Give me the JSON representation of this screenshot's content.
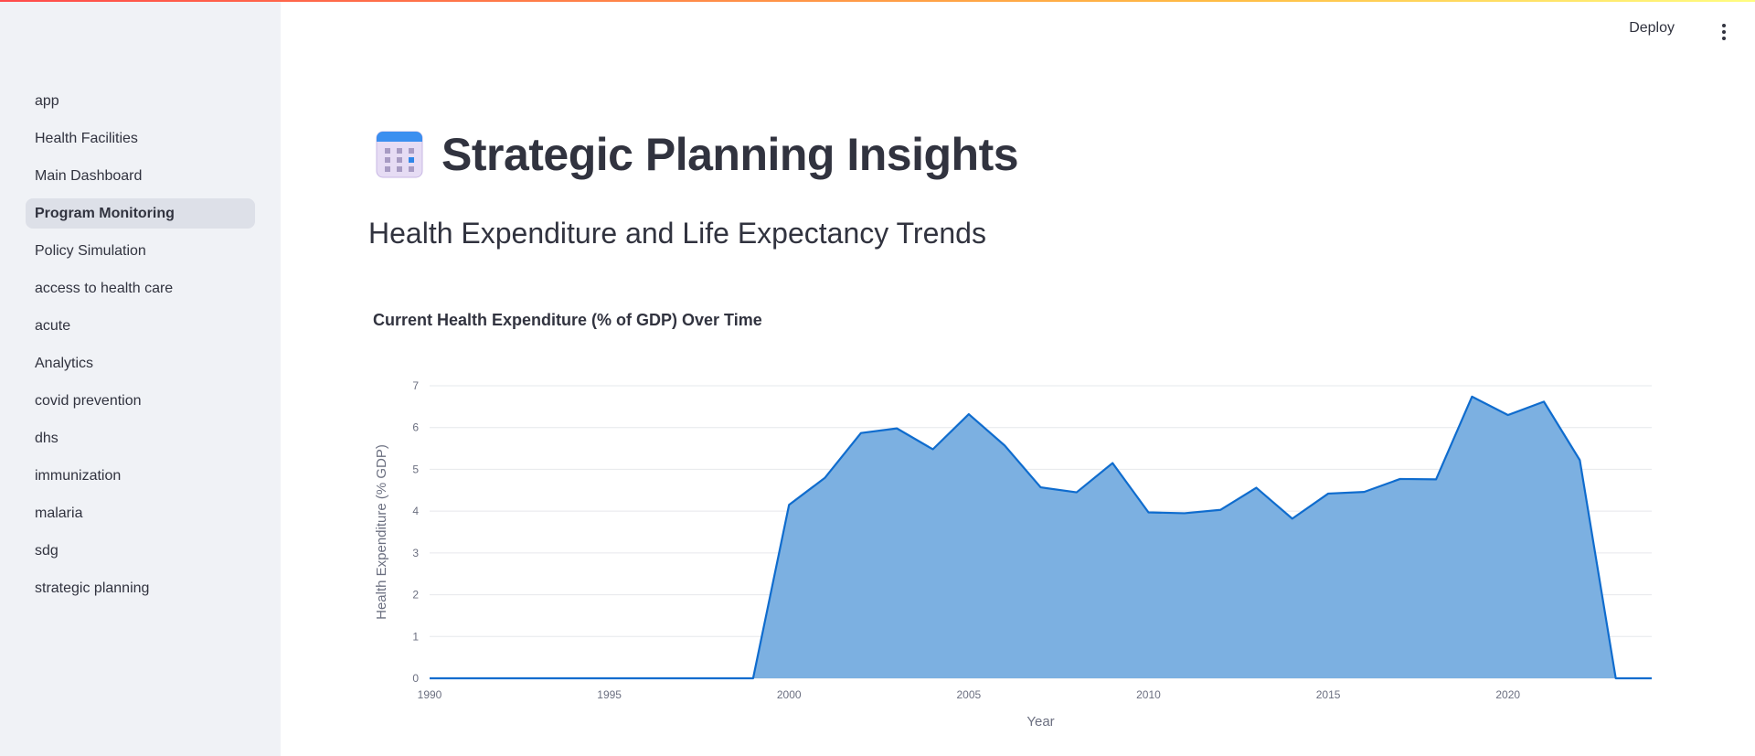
{
  "sidebar": {
    "items": [
      {
        "label": "app"
      },
      {
        "label": "Health Facilities"
      },
      {
        "label": "Main Dashboard"
      },
      {
        "label": "Program Monitoring"
      },
      {
        "label": "Policy Simulation"
      },
      {
        "label": "access to health care"
      },
      {
        "label": "acute"
      },
      {
        "label": "Analytics"
      },
      {
        "label": "covid prevention"
      },
      {
        "label": "dhs"
      },
      {
        "label": "immunization"
      },
      {
        "label": "malaria"
      },
      {
        "label": "sdg"
      },
      {
        "label": "strategic planning"
      }
    ],
    "active_index": 3
  },
  "header": {
    "deploy_label": "Deploy",
    "menu_icon": "kebab-menu-icon"
  },
  "main": {
    "title_icon": "calendar-icon",
    "title": "Strategic Planning Insights",
    "subtitle": "Health Expenditure and Life Expectancy Trends",
    "chart_title": "Current Health Expenditure (% of GDP) Over Time"
  },
  "colors": {
    "accent_gradient_start": "#ff4b4b",
    "accent_gradient_end": "#fffd80",
    "area_fill": "#7cb0e1",
    "line": "#0f6cce",
    "sidebar_bg": "#f0f2f6"
  },
  "chart_data": {
    "type": "area",
    "title": "Current Health Expenditure (% of GDP) Over Time",
    "xlabel": "Year",
    "ylabel": "Health Expenditure (% GDP)",
    "xlim": [
      1990,
      2024
    ],
    "ylim": [
      0,
      7
    ],
    "xticks": [
      1990,
      1995,
      2000,
      2005,
      2010,
      2015,
      2020
    ],
    "yticks": [
      0,
      1,
      2,
      3,
      4,
      5,
      6,
      7
    ],
    "grid": true,
    "x": [
      1990,
      1991,
      1992,
      1993,
      1994,
      1995,
      1996,
      1997,
      1998,
      1999,
      2000,
      2001,
      2002,
      2003,
      2004,
      2005,
      2006,
      2007,
      2008,
      2009,
      2010,
      2011,
      2012,
      2013,
      2014,
      2015,
      2016,
      2017,
      2018,
      2019,
      2020,
      2021,
      2022,
      2023,
      2024
    ],
    "values": [
      0,
      0,
      0,
      0,
      0,
      0,
      0,
      0,
      0,
      0,
      4.15,
      4.8,
      5.87,
      5.98,
      5.48,
      6.32,
      5.57,
      4.57,
      4.45,
      5.15,
      3.97,
      3.95,
      4.03,
      4.56,
      3.82,
      4.42,
      4.46,
      4.77,
      4.76,
      6.74,
      6.3,
      6.62,
      5.22,
      0,
      0
    ]
  }
}
